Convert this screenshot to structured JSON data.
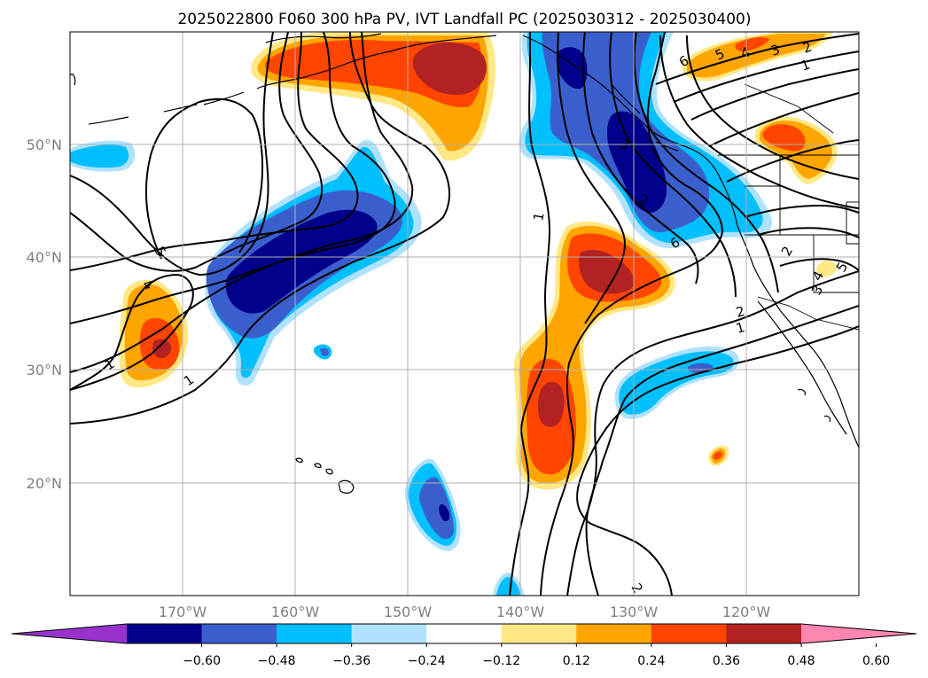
{
  "title": "2025022800 F060 300 hPa PV, IVT Landfall PC (2025030312 - 2025030400)",
  "lat_labels": [
    "50°N",
    "40°N",
    "30°N",
    "20°N"
  ],
  "lon_labels": [
    "170°W",
    "160°W",
    "150°W",
    "140°W",
    "130°W",
    "120°W"
  ],
  "colorbar": {
    "ticks": [
      "−0.60",
      "−0.48",
      "−0.36",
      "−0.24",
      "−0.12",
      "0.12",
      "0.24",
      "0.36",
      "0.48",
      "0.60"
    ],
    "colors": [
      "#9932cc",
      "#00008b",
      "#3a5fcd",
      "#00bfff",
      "#b0e2ff",
      "#ffffff",
      "#ffe885",
      "#ffa500",
      "#ff4500",
      "#b22222",
      "#ff86b0"
    ],
    "extend": "both"
  },
  "contour_labels": [
    "5",
    "4",
    "1",
    "1",
    "1",
    "2",
    "3",
    "6",
    "5",
    "4",
    "3",
    "2",
    "1",
    "6",
    "2",
    "1",
    "2",
    "4",
    "5",
    "3",
    "2"
  ],
  "map": {
    "projection": "PlateCarree",
    "lat_range": [
      10,
      60
    ],
    "lon_range": [
      -180,
      -110
    ],
    "grid": true
  }
}
